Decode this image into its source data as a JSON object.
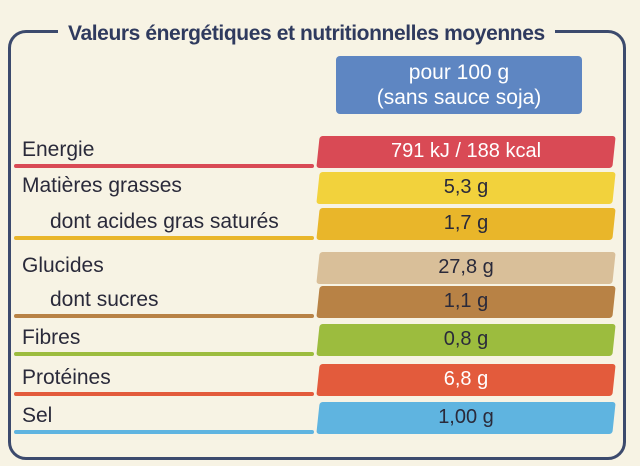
{
  "title": "Valeurs énergétiques et nutritionnelles moyennes",
  "header": {
    "line1": "pour 100 g",
    "line2": "(sans sauce soja)"
  },
  "colors": {
    "header": "#5e86c2",
    "energie": "#d94a55",
    "matieres_grasses": "#f2d23c",
    "satures": "#e9b62a",
    "glucides": "#d9bf99",
    "sucres": "#b88245",
    "fibres": "#9cbc3e",
    "proteines": "#e35b3c",
    "sel": "#5fb4e0"
  },
  "rows": [
    {
      "label": "Energie",
      "value": "791 kJ / 188 kcal"
    },
    {
      "label": "Matières grasses",
      "value": "5,3 g"
    },
    {
      "label": "dont acides gras saturés",
      "value": "1,7 g"
    },
    {
      "label": "Glucides",
      "value": "27,8 g"
    },
    {
      "label": "dont sucres",
      "value": "1,1 g"
    },
    {
      "label": "Fibres",
      "value": "0,8 g"
    },
    {
      "label": "Protéines",
      "value": "6,8 g"
    },
    {
      "label": "Sel",
      "value": "1,00 g"
    }
  ]
}
